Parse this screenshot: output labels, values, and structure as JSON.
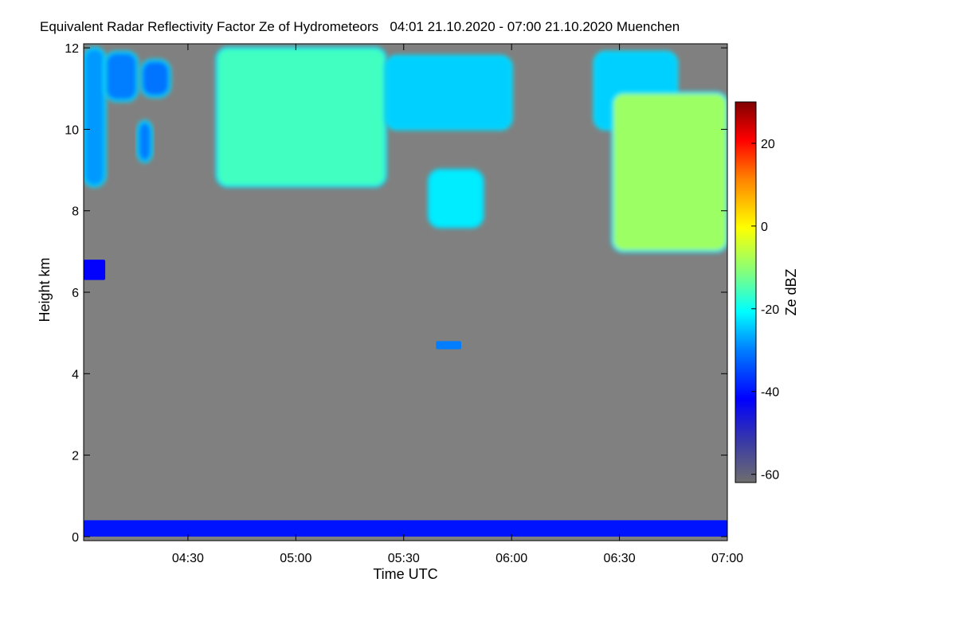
{
  "chart_data": {
    "type": "heatmap",
    "title": "Equivalent Radar Reflectivity Factor Ze of Hydrometeors   04:01 21.10.2020 - 07:00 21.10.2020 Muenchen",
    "xlabel": "Time UTC",
    "ylabel": "Height km",
    "colorbar_label": "Ze dBZ",
    "x_range_minutes_utc": [
      241,
      420
    ],
    "xticks": [
      {
        "label": "04:30",
        "value": 270
      },
      {
        "label": "05:00",
        "value": 300
      },
      {
        "label": "05:30",
        "value": 330
      },
      {
        "label": "06:00",
        "value": 360
      },
      {
        "label": "06:30",
        "value": 390
      },
      {
        "label": "07:00",
        "value": 420
      }
    ],
    "ylim": [
      -0.1,
      12.1
    ],
    "yticks": [
      0,
      2,
      4,
      6,
      8,
      10,
      12
    ],
    "colorbar_range": [
      -62,
      30
    ],
    "colorbar_ticks": [
      20,
      0,
      -20,
      -40,
      -60
    ],
    "background_color": "#808080",
    "echoes": [
      {
        "name": "upper-cloud-west",
        "t_start": 241,
        "t_end": 247,
        "base_km": 8.6,
        "top_km": 12.0,
        "ze_dbz": -28
      },
      {
        "name": "upper-cloud-fragment-a",
        "t_start": 247,
        "t_end": 256,
        "base_km": 10.7,
        "top_km": 11.9,
        "ze_dbz": -30
      },
      {
        "name": "upper-cloud-fragment-b",
        "t_start": 256,
        "t_end": 260,
        "base_km": 9.2,
        "top_km": 10.2,
        "ze_dbz": -30
      },
      {
        "name": "upper-cloud-fragment-c",
        "t_start": 257,
        "t_end": 265,
        "base_km": 10.8,
        "top_km": 11.7,
        "ze_dbz": -31
      },
      {
        "name": "upper-cloud-main",
        "t_start": 278,
        "t_end": 325,
        "base_km": 8.6,
        "top_km": 12.0,
        "ze_dbz": -16
      },
      {
        "name": "upper-cloud-east",
        "t_start": 325,
        "t_end": 360,
        "base_km": 10.0,
        "top_km": 11.8,
        "ze_dbz": -24
      },
      {
        "name": "cloud-band-8km",
        "t_start": 337,
        "t_end": 352,
        "base_km": 7.6,
        "top_km": 9.0,
        "ze_dbz": -22
      },
      {
        "name": "upper-cloud-north-east",
        "t_start": 383,
        "t_end": 406,
        "base_km": 10.0,
        "top_km": 11.9,
        "ze_dbz": -24
      },
      {
        "name": "deep-cloud-east",
        "t_start": 388,
        "t_end": 420,
        "base_km": 7.0,
        "top_km": 10.9,
        "ze_dbz": -9
      },
      {
        "name": "thin-layer-6.5km",
        "t_start": 241,
        "t_end": 247,
        "base_km": 6.3,
        "top_km": 6.8,
        "ze_dbz": -42
      },
      {
        "name": "thin-layer-4.7km",
        "t_start": 339,
        "t_end": 346,
        "base_km": 4.6,
        "top_km": 4.8,
        "ze_dbz": -30
      },
      {
        "name": "ground-clutter",
        "t_start": 241,
        "t_end": 420,
        "base_km": 0.0,
        "top_km": 0.4,
        "ze_dbz": -40
      }
    ]
  }
}
